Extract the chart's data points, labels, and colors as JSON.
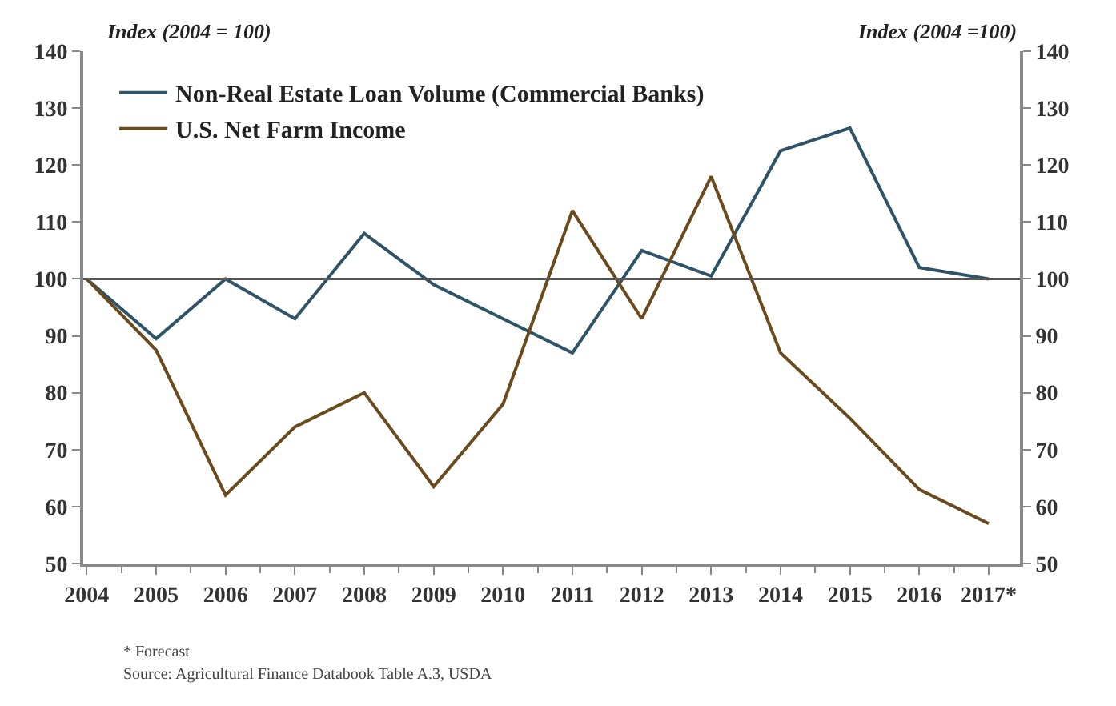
{
  "chart_data": {
    "type": "line",
    "categories": [
      "2004",
      "2005",
      "2006",
      "2007",
      "2008",
      "2009",
      "2010",
      "2011",
      "2012",
      "2013",
      "2014",
      "2015",
      "2016",
      "2017*"
    ],
    "series": [
      {
        "name": "Non-Real Estate Loan Volume (Commercial Banks)",
        "color": "#2f5468",
        "values": [
          100,
          89.5,
          100,
          93,
          108,
          99,
          93,
          87,
          105,
          100.5,
          122.5,
          126.5,
          102,
          100
        ]
      },
      {
        "name": "U.S. Net Farm Income",
        "color": "#6b4a1e",
        "values": [
          100,
          87.5,
          62,
          74,
          80,
          63.5,
          78,
          112,
          93,
          118,
          87,
          75.5,
          63,
          57
        ]
      }
    ],
    "ylabel": "Index (2004 = 100)",
    "y2label": "Index (2004 =100)",
    "ylim": [
      50,
      140
    ],
    "yticks": [
      50,
      60,
      70,
      80,
      90,
      100,
      110,
      120,
      130,
      140
    ],
    "y2lim": [
      50,
      140
    ],
    "y2ticks": [
      50,
      60,
      70,
      80,
      90,
      100,
      110,
      120,
      130,
      140
    ],
    "ref_lines": [
      {
        "axis": "y",
        "value": 100,
        "color": "#555555"
      }
    ],
    "annotations": [
      "* Forecast",
      "Source: Agricultural Finance Databook Table A.3, USDA"
    ],
    "legend": "top left",
    "marker": "none",
    "line_style": "solid"
  }
}
